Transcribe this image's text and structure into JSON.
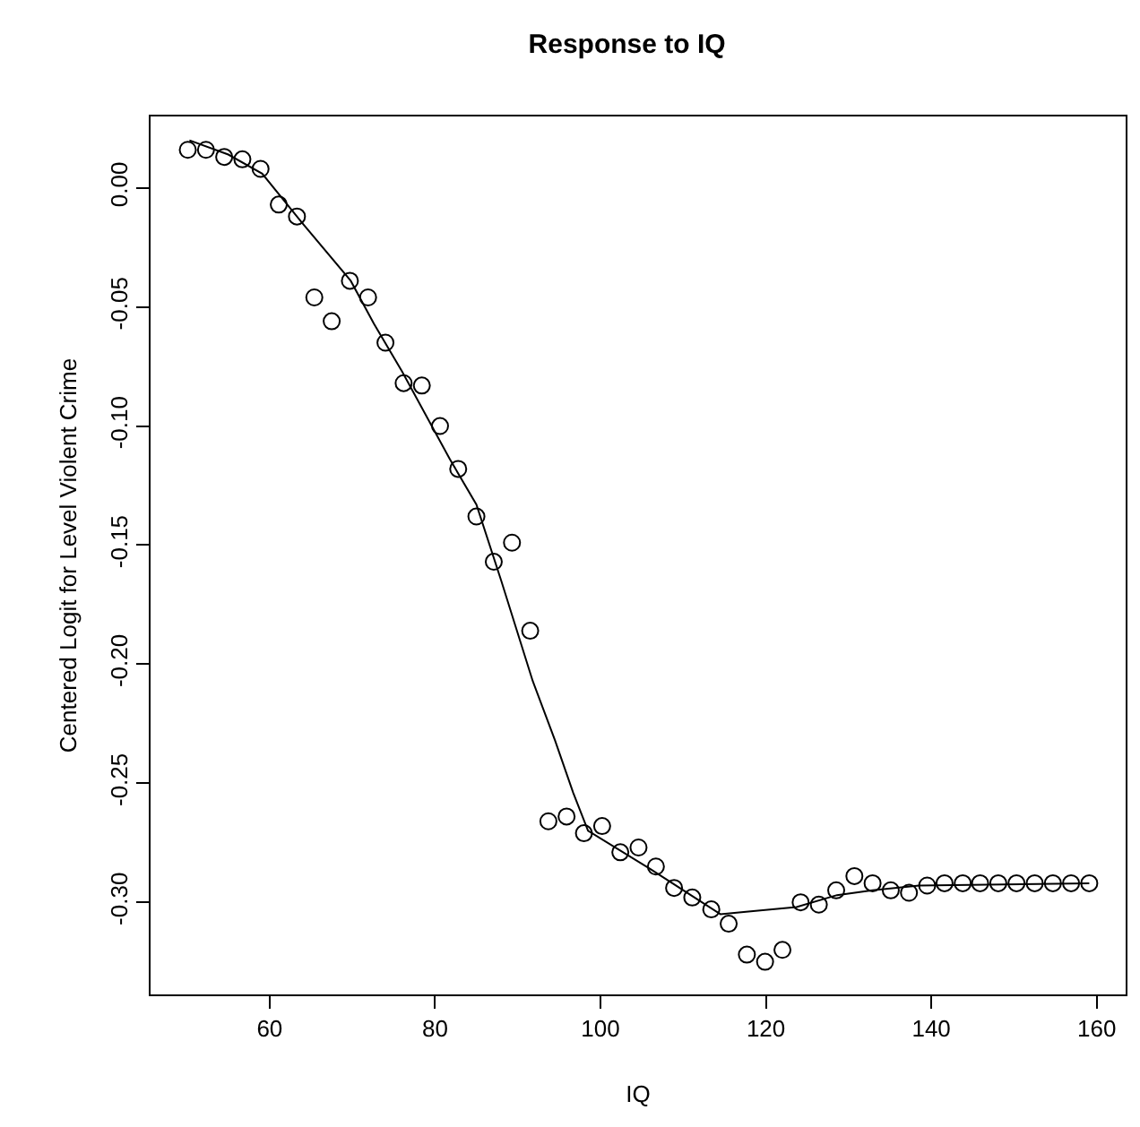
{
  "chart_data": {
    "type": "scatter",
    "title": "Response to IQ",
    "xlabel": "IQ",
    "ylabel": "Centered Logit for Level Violent Crime",
    "xlim": [
      45.6,
      163.5
    ],
    "ylim": [
      -0.3387,
      0.03
    ],
    "xticks": [
      60,
      80,
      100,
      120,
      140,
      160
    ],
    "yticks": [
      {
        "value": 0,
        "label": "0.00"
      },
      {
        "value": -0.05,
        "label": "-0.05"
      },
      {
        "value": -0.1,
        "label": "-0.10"
      },
      {
        "value": -0.15,
        "label": "-0.15"
      },
      {
        "value": -0.2,
        "label": "-0.20"
      },
      {
        "value": -0.25,
        "label": "-0.25"
      },
      {
        "value": -0.3,
        "label": "-0.30"
      }
    ],
    "grid": false,
    "series": [
      {
        "marker": "circle",
        "color": "#000000",
        "x": [
          50.1,
          52.3,
          54.5,
          56.7,
          58.9,
          61.1,
          63.3,
          65.4,
          67.5,
          69.7,
          71.9,
          74.0,
          76.2,
          78.4,
          80.6,
          82.8,
          85.0,
          87.1,
          89.3,
          91.5,
          93.7,
          95.9,
          98.0,
          100.2,
          102.4,
          104.6,
          106.7,
          108.9,
          111.1,
          113.4,
          115.5,
          117.7,
          119.9,
          122.0,
          124.2,
          126.4,
          128.5,
          130.7,
          132.9,
          135.1,
          137.3,
          139.5,
          141.6,
          143.8,
          145.9,
          148.1,
          150.3,
          152.5,
          154.7,
          156.9,
          159.1
        ],
        "values": [
          0.016,
          0.016,
          0.013,
          0.012,
          0.008,
          -0.007,
          -0.012,
          -0.046,
          -0.056,
          -0.039,
          -0.046,
          -0.065,
          -0.082,
          -0.083,
          -0.1,
          -0.118,
          -0.138,
          -0.157,
          -0.149,
          -0.186,
          -0.266,
          -0.264,
          -0.271,
          -0.268,
          -0.279,
          -0.277,
          -0.285,
          -0.294,
          -0.298,
          -0.303,
          -0.309,
          -0.322,
          -0.325,
          -0.32,
          -0.3,
          -0.301,
          -0.295,
          -0.289,
          -0.292,
          -0.295,
          -0.296,
          -0.293,
          -0.292,
          -0.292,
          -0.292,
          -0.292,
          -0.292,
          -0.292,
          -0.292,
          -0.292,
          -0.292
        ]
      },
      {
        "type": "line",
        "marker": "none",
        "line_style": "solid",
        "color": "#000000",
        "x": [
          50.3,
          55,
          59.1,
          64,
          69.8,
          72.6,
          76,
          81.8,
          85,
          88,
          91.8,
          94.5,
          96.7,
          98.5,
          106,
          114.5,
          123.7,
          128.6,
          132.9,
          138.5,
          159.1
        ],
        "values": [
          0.02,
          0.014,
          0.006,
          -0.015,
          -0.039,
          -0.057,
          -0.077,
          -0.114,
          -0.133,
          -0.165,
          -0.207,
          -0.232,
          -0.254,
          -0.27,
          -0.286,
          -0.305,
          -0.302,
          -0.297,
          -0.295,
          -0.293,
          -0.292
        ]
      }
    ]
  }
}
